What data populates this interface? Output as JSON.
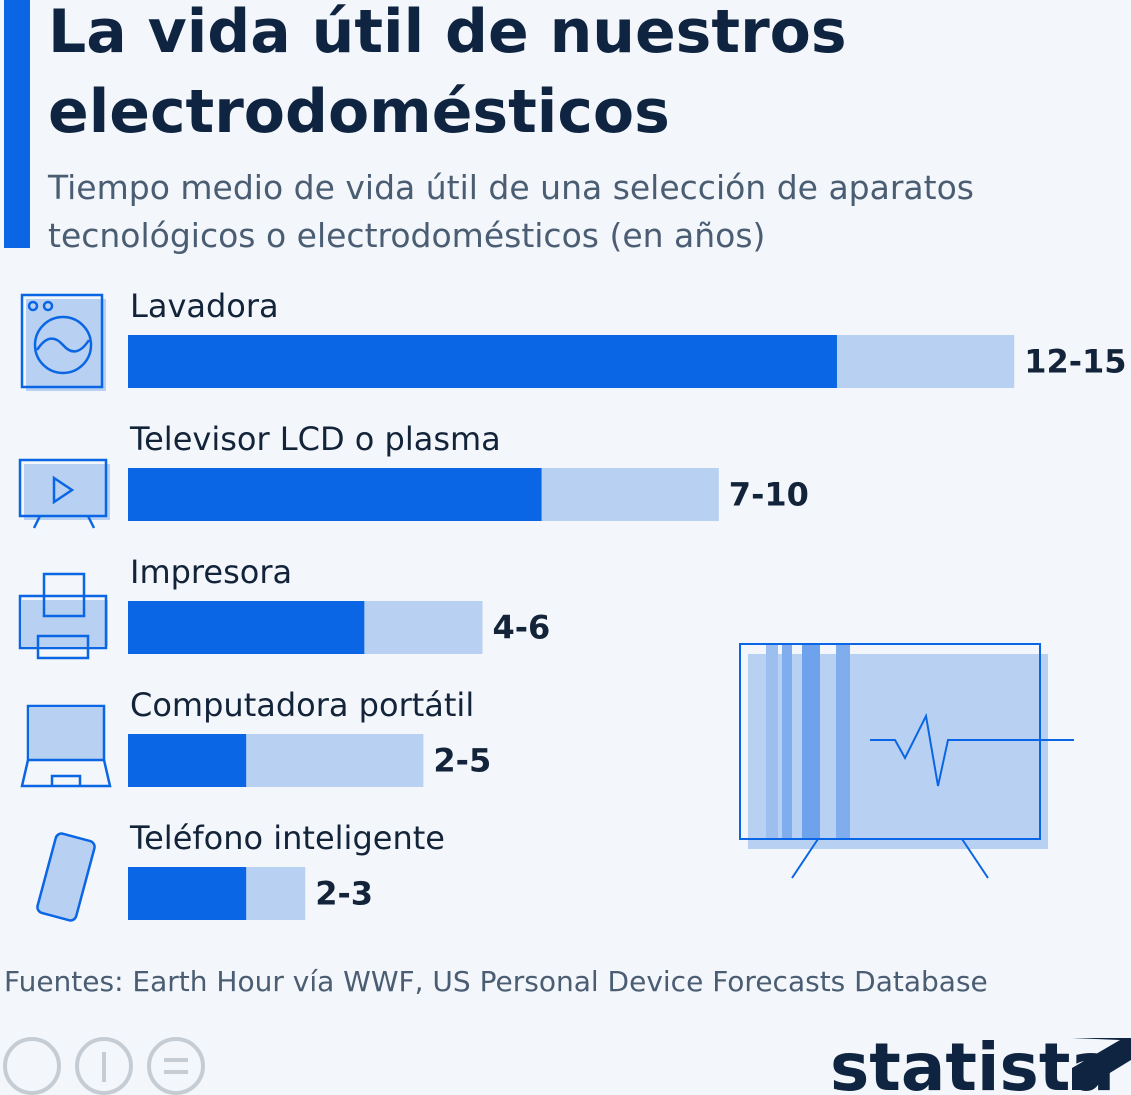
{
  "chart_data": {
    "type": "range-bar",
    "title": "La vida útil de nuestros electrodomésticos",
    "subtitle": "Tiempo medio de vida útil de una selección de aparatos tecnológicos o electrodomésticos (en años)",
    "categories": [
      "Lavadora",
      "Televisor LCD o plasma",
      "Impresora",
      "Computadora portátil",
      "Teléfono inteligente"
    ],
    "low": [
      12,
      7,
      4,
      2,
      2
    ],
    "high": [
      15,
      10,
      6,
      5,
      3
    ],
    "value_labels": [
      "12-15",
      "7-10",
      "4-6",
      "2-5",
      "2-3"
    ],
    "low_color": "#0a66e4",
    "high_color": "#b8d1f3",
    "source": "Fuentes: Earth Hour vía WWF, US Personal Device Forecasts Database",
    "brand": "statista"
  }
}
